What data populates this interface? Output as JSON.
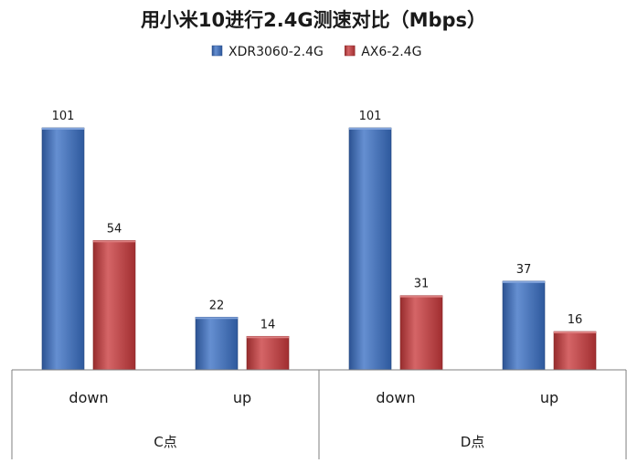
{
  "chart_data": {
    "type": "bar",
    "title": "用小米10进行2.4G测速对比（Mbps）",
    "groups": [
      {
        "label": "C点",
        "categories": [
          "down",
          "up"
        ]
      },
      {
        "label": "D点",
        "categories": [
          "down",
          "up"
        ]
      }
    ],
    "categories": [
      "down",
      "up",
      "down",
      "up"
    ],
    "series": [
      {
        "name": "XDR3060-2.4G",
        "values": [
          101,
          22,
          101,
          37
        ],
        "color": "#3a6fc4"
      },
      {
        "name": "AX6-2.4G",
        "values": [
          54,
          14,
          31,
          16
        ],
        "color": "#c93a3c"
      }
    ],
    "ylim": [
      0,
      101
    ],
    "grid": false,
    "legend_position": "top-center",
    "data_labels": true
  }
}
